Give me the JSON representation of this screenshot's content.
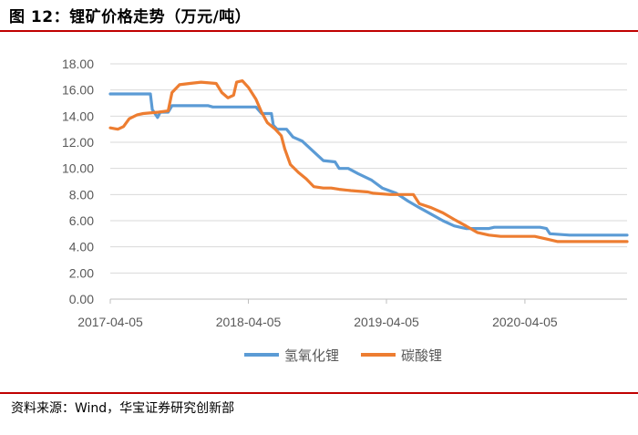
{
  "figure": {
    "title": "图 12：锂矿价格走势（万元/吨）",
    "source": "资料来源：Wind，华宝证券研究创新部"
  },
  "chart_data": {
    "type": "line",
    "ylim": [
      0,
      18
    ],
    "yticks": [
      "18.00",
      "16.00",
      "14.00",
      "12.00",
      "10.00",
      "8.00",
      "6.00",
      "4.00",
      "2.00",
      "0.00"
    ],
    "xlim": [
      "2017-04-05",
      "2020-12-31"
    ],
    "xticks": [
      "2017-04-05",
      "2018-04-05",
      "2019-04-05",
      "2020-04-05"
    ],
    "grid": "horizontal",
    "legend_position": "bottom",
    "series": [
      {
        "name": "氢氧化锂",
        "color": "#5b9bd5",
        "points": [
          [
            "2017-04-05",
            15.7
          ],
          [
            "2017-07-20",
            15.7
          ],
          [
            "2017-07-25",
            14.5
          ],
          [
            "2017-08-08",
            13.9
          ],
          [
            "2017-08-15",
            14.3
          ],
          [
            "2017-09-05",
            14.3
          ],
          [
            "2017-09-15",
            14.8
          ],
          [
            "2017-12-20",
            14.8
          ],
          [
            "2018-01-01",
            14.7
          ],
          [
            "2018-04-25",
            14.7
          ],
          [
            "2018-05-10",
            14.2
          ],
          [
            "2018-06-05",
            14.2
          ],
          [
            "2018-06-10",
            13.3
          ],
          [
            "2018-06-20",
            13.0
          ],
          [
            "2018-07-15",
            13.0
          ],
          [
            "2018-08-01",
            12.4
          ],
          [
            "2018-08-25",
            12.1
          ],
          [
            "2018-09-20",
            11.4
          ],
          [
            "2018-10-20",
            10.6
          ],
          [
            "2018-11-20",
            10.5
          ],
          [
            "2018-12-01",
            10.0
          ],
          [
            "2018-12-25",
            10.0
          ],
          [
            "2019-01-20",
            9.6
          ],
          [
            "2019-02-25",
            9.1
          ],
          [
            "2019-03-25",
            8.5
          ],
          [
            "2019-05-01",
            8.1
          ],
          [
            "2019-06-01",
            7.5
          ],
          [
            "2019-07-01",
            7.0
          ],
          [
            "2019-08-01",
            6.5
          ],
          [
            "2019-09-01",
            6.0
          ],
          [
            "2019-10-01",
            5.6
          ],
          [
            "2019-11-01",
            5.4
          ],
          [
            "2020-01-01",
            5.4
          ],
          [
            "2020-01-15",
            5.5
          ],
          [
            "2020-05-15",
            5.5
          ],
          [
            "2020-06-01",
            5.4
          ],
          [
            "2020-06-10",
            5.0
          ],
          [
            "2020-08-01",
            4.9
          ],
          [
            "2020-12-31",
            4.9
          ]
        ]
      },
      {
        "name": "碳酸锂",
        "color": "#ed7d31",
        "points": [
          [
            "2017-04-05",
            13.1
          ],
          [
            "2017-04-25",
            13.0
          ],
          [
            "2017-05-10",
            13.2
          ],
          [
            "2017-05-25",
            13.8
          ],
          [
            "2017-06-15",
            14.1
          ],
          [
            "2017-07-01",
            14.2
          ],
          [
            "2017-08-10",
            14.3
          ],
          [
            "2017-09-05",
            14.4
          ],
          [
            "2017-09-15",
            15.8
          ],
          [
            "2017-10-05",
            16.4
          ],
          [
            "2017-11-01",
            16.5
          ],
          [
            "2017-12-01",
            16.6
          ],
          [
            "2018-01-10",
            16.5
          ],
          [
            "2018-01-25",
            15.8
          ],
          [
            "2018-02-10",
            15.4
          ],
          [
            "2018-02-25",
            15.6
          ],
          [
            "2018-03-05",
            16.6
          ],
          [
            "2018-03-20",
            16.7
          ],
          [
            "2018-04-05",
            16.2
          ],
          [
            "2018-04-25",
            15.3
          ],
          [
            "2018-05-10",
            14.3
          ],
          [
            "2018-05-25",
            13.5
          ],
          [
            "2018-06-15",
            13.0
          ],
          [
            "2018-07-01",
            12.5
          ],
          [
            "2018-07-10",
            11.5
          ],
          [
            "2018-07-25",
            10.3
          ],
          [
            "2018-08-15",
            9.7
          ],
          [
            "2018-09-05",
            9.2
          ],
          [
            "2018-09-25",
            8.6
          ],
          [
            "2018-10-20",
            8.5
          ],
          [
            "2018-11-10",
            8.5
          ],
          [
            "2018-12-01",
            8.4
          ],
          [
            "2019-01-01",
            8.3
          ],
          [
            "2019-02-15",
            8.2
          ],
          [
            "2019-03-01",
            8.1
          ],
          [
            "2019-04-15",
            8.0
          ],
          [
            "2019-06-15",
            8.0
          ],
          [
            "2019-07-01",
            7.3
          ],
          [
            "2019-08-01",
            7.0
          ],
          [
            "2019-09-01",
            6.6
          ],
          [
            "2019-10-01",
            6.1
          ],
          [
            "2019-11-01",
            5.6
          ],
          [
            "2019-12-01",
            5.1
          ],
          [
            "2020-01-01",
            4.9
          ],
          [
            "2020-02-01",
            4.8
          ],
          [
            "2020-05-01",
            4.8
          ],
          [
            "2020-06-01",
            4.6
          ],
          [
            "2020-07-01",
            4.4
          ],
          [
            "2020-09-01",
            4.4
          ],
          [
            "2020-12-31",
            4.4
          ]
        ]
      }
    ]
  }
}
